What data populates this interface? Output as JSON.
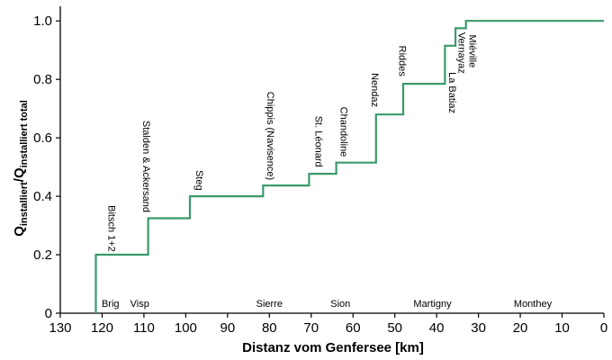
{
  "chart_data": {
    "type": "line",
    "step": "post",
    "title": "",
    "xlabel": "Distanz vom Genfersee [km]",
    "ylabel": {
      "main": "Q",
      "sub1": "installiert",
      "mid": "/Q",
      "sub2": "installiert total"
    },
    "xlim": [
      130,
      0
    ],
    "ylim": [
      0,
      1.05
    ],
    "x_reversed": true,
    "grid": false,
    "line_color": "#3a9a6a",
    "xticks": [
      130,
      120,
      110,
      100,
      90,
      80,
      70,
      60,
      50,
      40,
      30,
      20,
      10,
      0
    ],
    "yticks": [
      0,
      0.2,
      0.4,
      0.6,
      0.8,
      1.0
    ],
    "ytick_labels": [
      "0",
      "0.2",
      "0.4",
      "0.6",
      "0.8",
      "1.0"
    ],
    "series": [
      {
        "x": [
          121.5,
          121.5,
          109,
          109,
          99,
          99,
          81.5,
          81.5,
          70.5,
          70.5,
          64,
          64,
          54.5,
          54.5,
          48,
          48,
          38,
          38,
          35.5,
          35.5,
          33,
          33,
          0
        ],
        "y": [
          0,
          0.2,
          0.2,
          0.325,
          0.325,
          0.4,
          0.4,
          0.437,
          0.437,
          0.477,
          0.477,
          0.515,
          0.515,
          0.68,
          0.68,
          0.785,
          0.785,
          0.915,
          0.915,
          0.975,
          0.975,
          1.0,
          1.0
        ]
      }
    ],
    "places": [
      {
        "name": "Brig",
        "x": 118
      },
      {
        "name": "Visp",
        "x": 111
      },
      {
        "name": "Sierre",
        "x": 80
      },
      {
        "name": "Sion",
        "x": 63
      },
      {
        "name": "Martigny",
        "x": 41
      },
      {
        "name": "Monthey",
        "x": 17
      }
    ],
    "stations": [
      {
        "name": "Bitsch 1+2",
        "x": 118.5,
        "y": 0.21,
        "side": "right"
      },
      {
        "name": "Stalden & Ackersand",
        "x": 110.2,
        "y": 0.345,
        "side": "left"
      },
      {
        "name": "Steg",
        "x": 97.5,
        "y": 0.42,
        "side": "right"
      },
      {
        "name": "Chippis (Navisence)",
        "x": 80.5,
        "y": 0.455,
        "side": "right"
      },
      {
        "name": "St. Léonard",
        "x": 69,
        "y": 0.5,
        "side": "right"
      },
      {
        "name": "Chandoline",
        "x": 63,
        "y": 0.535,
        "side": "right"
      },
      {
        "name": "Nendaz",
        "x": 55.5,
        "y": 0.705,
        "side": "left"
      },
      {
        "name": "Riddes",
        "x": 49,
        "y": 0.81,
        "side": "left"
      },
      {
        "name": "La Batiaz",
        "x": 37,
        "y": 0.755,
        "side": "right",
        "align": "start"
      },
      {
        "name": "Vernayaz",
        "x": 34.8,
        "y": 0.82,
        "side": "right",
        "align": "end-above",
        "y_start": 0.94
      },
      {
        "name": "Miéville",
        "x": 32.2,
        "y": 0.84,
        "side": "right",
        "align": "start-up",
        "y_start": 0.84
      }
    ]
  }
}
